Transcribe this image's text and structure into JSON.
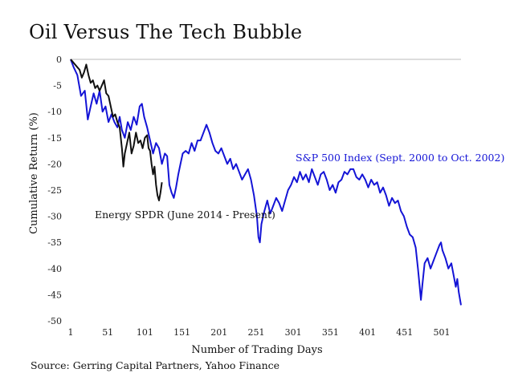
{
  "title": "Oil Versus The Tech Bubble",
  "source": "Source: Gerring Capital Partners, Yahoo Finance",
  "chart_data": {
    "type": "line",
    "xlabel": "Number of Trading Days",
    "ylabel": "Cumulative Return (%)",
    "xlim": [
      1,
      527
    ],
    "ylim": [
      -50,
      0
    ],
    "x_ticks": [
      1,
      51,
      101,
      151,
      201,
      251,
      301,
      351,
      401,
      451,
      501
    ],
    "y_ticks": [
      0,
      -5,
      -10,
      -15,
      -20,
      -25,
      -30,
      -35,
      -40,
      -45,
      -50
    ],
    "grid": "baseline-only",
    "legend": "none",
    "series": [
      {
        "name": "S&P 500 Index (Sept. 2000 to Oct. 2002)",
        "color": "#1414d6",
        "points": [
          [
            1,
            0
          ],
          [
            5,
            -1.5
          ],
          [
            10,
            -3
          ],
          [
            15,
            -7
          ],
          [
            20,
            -6
          ],
          [
            24,
            -11.5
          ],
          [
            28,
            -9
          ],
          [
            32,
            -6.5
          ],
          [
            36,
            -8.5
          ],
          [
            40,
            -6
          ],
          [
            44,
            -10
          ],
          [
            48,
            -9
          ],
          [
            52,
            -12
          ],
          [
            56,
            -10.5
          ],
          [
            60,
            -12
          ],
          [
            64,
            -13
          ],
          [
            67,
            -11
          ],
          [
            70,
            -13.5
          ],
          [
            74,
            -15
          ],
          [
            78,
            -12
          ],
          [
            82,
            -13.5
          ],
          [
            86,
            -11
          ],
          [
            90,
            -12.5
          ],
          [
            94,
            -9
          ],
          [
            97,
            -8.5
          ],
          [
            100,
            -11
          ],
          [
            104,
            -13
          ],
          [
            108,
            -15.5
          ],
          [
            112,
            -18
          ],
          [
            116,
            -16
          ],
          [
            120,
            -17
          ],
          [
            124,
            -20
          ],
          [
            128,
            -18
          ],
          [
            131,
            -18.5
          ],
          [
            134,
            -24
          ],
          [
            137,
            -25.5
          ],
          [
            140,
            -26.5
          ],
          [
            143,
            -24.5
          ],
          [
            146,
            -22
          ],
          [
            149,
            -20
          ],
          [
            152,
            -18
          ],
          [
            156,
            -17.5
          ],
          [
            160,
            -18
          ],
          [
            164,
            -16
          ],
          [
            168,
            -17.5
          ],
          [
            172,
            -15.5
          ],
          [
            176,
            -15.5
          ],
          [
            180,
            -14
          ],
          [
            184,
            -12.5
          ],
          [
            188,
            -14
          ],
          [
            192,
            -16
          ],
          [
            196,
            -17.5
          ],
          [
            200,
            -18
          ],
          [
            204,
            -17
          ],
          [
            208,
            -18.5
          ],
          [
            212,
            -20
          ],
          [
            216,
            -19
          ],
          [
            220,
            -21
          ],
          [
            224,
            -20
          ],
          [
            228,
            -21.5
          ],
          [
            232,
            -23
          ],
          [
            236,
            -22
          ],
          [
            240,
            -21
          ],
          [
            244,
            -23
          ],
          [
            248,
            -26
          ],
          [
            252,
            -30
          ],
          [
            254,
            -34
          ],
          [
            256,
            -35
          ],
          [
            258,
            -31.5
          ],
          [
            262,
            -29
          ],
          [
            266,
            -27
          ],
          [
            270,
            -29.5
          ],
          [
            274,
            -28
          ],
          [
            278,
            -26.5
          ],
          [
            282,
            -27.5
          ],
          [
            286,
            -29
          ],
          [
            290,
            -27
          ],
          [
            294,
            -25
          ],
          [
            298,
            -24
          ],
          [
            302,
            -22.5
          ],
          [
            306,
            -23.5
          ],
          [
            310,
            -21.5
          ],
          [
            314,
            -23
          ],
          [
            318,
            -22
          ],
          [
            322,
            -23.5
          ],
          [
            326,
            -21
          ],
          [
            330,
            -22.5
          ],
          [
            334,
            -24
          ],
          [
            338,
            -22
          ],
          [
            342,
            -21.5
          ],
          [
            346,
            -23
          ],
          [
            350,
            -25
          ],
          [
            354,
            -24
          ],
          [
            358,
            -25.5
          ],
          [
            362,
            -23.5
          ],
          [
            366,
            -23
          ],
          [
            370,
            -21.5
          ],
          [
            374,
            -22
          ],
          [
            378,
            -21
          ],
          [
            382,
            -21
          ],
          [
            386,
            -22.5
          ],
          [
            390,
            -23
          ],
          [
            394,
            -22
          ],
          [
            398,
            -23
          ],
          [
            402,
            -24.5
          ],
          [
            406,
            -23
          ],
          [
            410,
            -24
          ],
          [
            414,
            -23.5
          ],
          [
            418,
            -25.5
          ],
          [
            422,
            -24.5
          ],
          [
            426,
            -26
          ],
          [
            430,
            -28
          ],
          [
            434,
            -26.5
          ],
          [
            438,
            -27.5
          ],
          [
            442,
            -27
          ],
          [
            446,
            -29
          ],
          [
            450,
            -30
          ],
          [
            454,
            -32
          ],
          [
            458,
            -33.5
          ],
          [
            462,
            -34
          ],
          [
            466,
            -36
          ],
          [
            469,
            -40
          ],
          [
            471,
            -43
          ],
          [
            473,
            -46
          ],
          [
            475,
            -43
          ],
          [
            478,
            -39
          ],
          [
            482,
            -38
          ],
          [
            486,
            -40
          ],
          [
            490,
            -38.5
          ],
          [
            494,
            -37
          ],
          [
            498,
            -35.5
          ],
          [
            500,
            -35
          ],
          [
            502,
            -36.5
          ],
          [
            506,
            -38
          ],
          [
            510,
            -40
          ],
          [
            514,
            -39
          ],
          [
            518,
            -42
          ],
          [
            520,
            -43.5
          ],
          [
            522,
            -42
          ],
          [
            524,
            -44.5
          ],
          [
            527,
            -47
          ]
        ]
      },
      {
        "name": "Energy SPDR (June 2014 - Present)",
        "color": "#111111",
        "points": [
          [
            1,
            0
          ],
          [
            4,
            -0.5
          ],
          [
            7,
            -1
          ],
          [
            10,
            -1.5
          ],
          [
            13,
            -2
          ],
          [
            16,
            -3.5
          ],
          [
            19,
            -2.5
          ],
          [
            22,
            -1
          ],
          [
            25,
            -3
          ],
          [
            28,
            -4.5
          ],
          [
            31,
            -4
          ],
          [
            34,
            -5.5
          ],
          [
            37,
            -5
          ],
          [
            40,
            -6
          ],
          [
            43,
            -5
          ],
          [
            46,
            -4
          ],
          [
            49,
            -6.5
          ],
          [
            52,
            -7
          ],
          [
            55,
            -9
          ],
          [
            58,
            -11
          ],
          [
            61,
            -10.5
          ],
          [
            64,
            -12
          ],
          [
            67,
            -13
          ],
          [
            70,
            -17
          ],
          [
            72,
            -20.5
          ],
          [
            74,
            -18
          ],
          [
            77,
            -16
          ],
          [
            80,
            -14
          ],
          [
            83,
            -18
          ],
          [
            86,
            -16.5
          ],
          [
            89,
            -14
          ],
          [
            92,
            -16
          ],
          [
            95,
            -15.5
          ],
          [
            98,
            -17
          ],
          [
            101,
            -15
          ],
          [
            104,
            -14.5
          ],
          [
            106,
            -17
          ],
          [
            108,
            -17.5
          ],
          [
            110,
            -20
          ],
          [
            112,
            -22
          ],
          [
            114,
            -20.5
          ],
          [
            116,
            -24
          ],
          [
            118,
            -26
          ],
          [
            120,
            -27
          ],
          [
            122,
            -25.5
          ],
          [
            124,
            -23.5
          ]
        ]
      }
    ],
    "annotations": [
      {
        "text": "S&P 500 Index (Sept. 2000 to Oct. 2002)",
        "color": "#1414d6"
      },
      {
        "text": "Energy SPDR (June 2014 - Present)",
        "color": "#111111"
      }
    ]
  }
}
